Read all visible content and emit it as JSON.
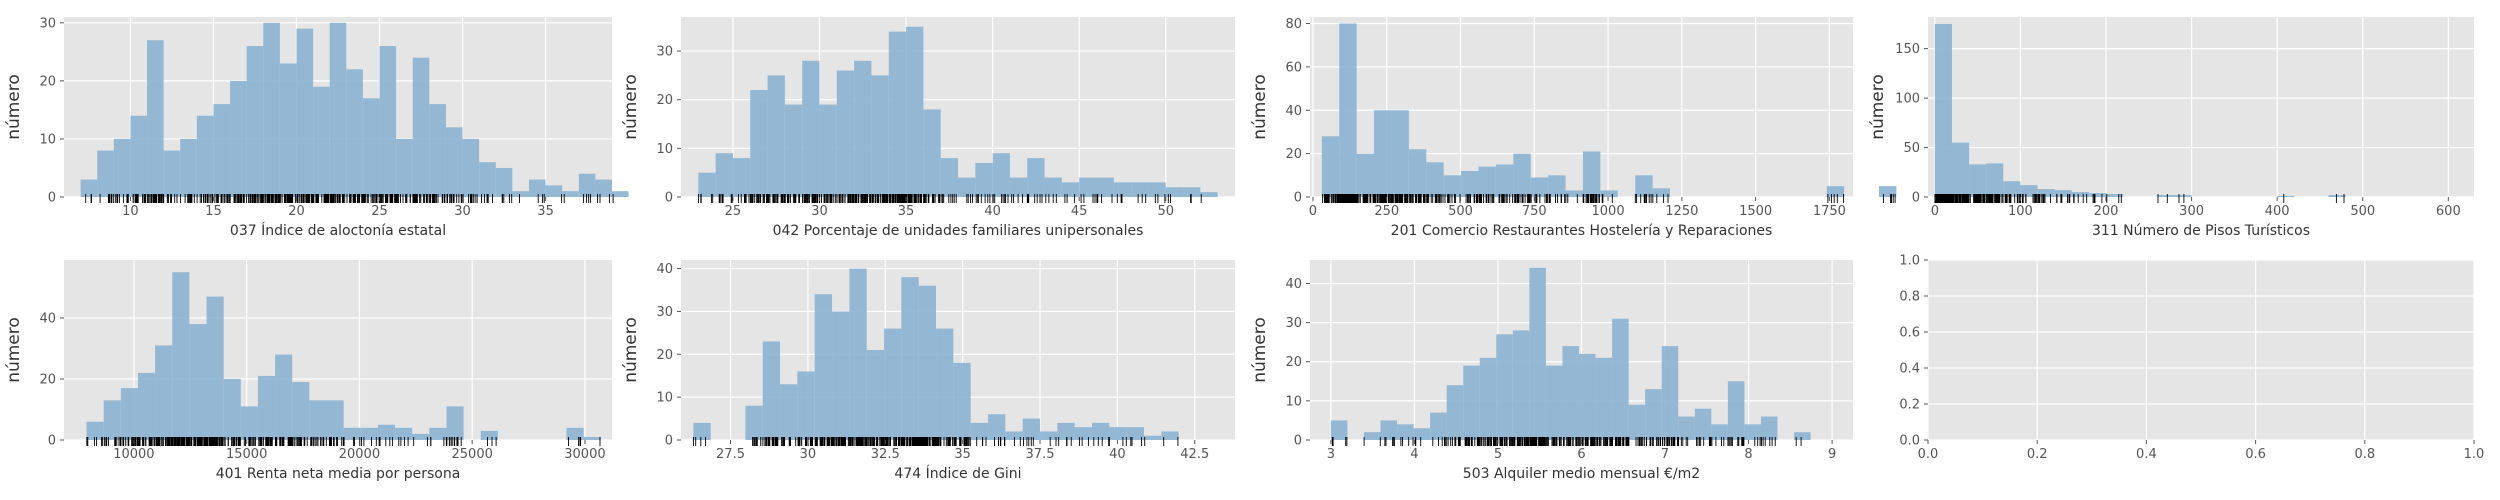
{
  "chart_data": [
    {
      "type": "bar",
      "subtype": "histogram-with-rug",
      "xlabel": "037 Índice de aloctonía estatal",
      "ylabel": "número",
      "xlim": [
        6,
        39
      ],
      "ylim": [
        0,
        31
      ],
      "xticks": [
        10,
        15,
        20,
        25,
        30,
        35
      ],
      "yticks": [
        0,
        10,
        20,
        30
      ],
      "bin_start": 7.0,
      "bin_width": 1.0,
      "counts": [
        3,
        8,
        10,
        14,
        27,
        8,
        10,
        14,
        16,
        20,
        26,
        30,
        23,
        29,
        19,
        30,
        22,
        17,
        26,
        10,
        24,
        16,
        12,
        10,
        6,
        5,
        1,
        3,
        2,
        1,
        4,
        3,
        1
      ],
      "grid": true
    },
    {
      "type": "bar",
      "subtype": "histogram-with-rug",
      "xlabel": "042 Porcentaje de unidades familiares unipersonales",
      "ylabel": "número",
      "xlim": [
        22,
        54
      ],
      "ylim": [
        0,
        37
      ],
      "xticks": [
        25,
        30,
        35,
        40,
        45,
        50
      ],
      "yticks": [
        0,
        10,
        20,
        30
      ],
      "bin_start": 23.0,
      "bin_width": 1.0,
      "counts": [
        5,
        9,
        8,
        22,
        25,
        19,
        28,
        19,
        26,
        28,
        25,
        34,
        35,
        18,
        8,
        4,
        7,
        9,
        4,
        8,
        4,
        3,
        4,
        4,
        3,
        3,
        3,
        2,
        2,
        1
      ],
      "grid": true
    },
    {
      "type": "bar",
      "subtype": "histogram-with-rug",
      "xlabel": "201 Comercio Restaurantes Hostelería y Reparaciones",
      "ylabel": "número",
      "xlim": [
        -10,
        1830
      ],
      "ylim": [
        0,
        83
      ],
      "xticks": [
        0,
        250,
        500,
        750,
        1000,
        1250,
        1500,
        1750
      ],
      "yticks": [
        0,
        20,
        40,
        60,
        80
      ],
      "bin_start": 30,
      "bin_width": 59,
      "counts": [
        28,
        80,
        20,
        40,
        40,
        22,
        16,
        10,
        12,
        14,
        15,
        20,
        9,
        10,
        3,
        21,
        3,
        0,
        10,
        4,
        0,
        0,
        0,
        0,
        0,
        0,
        0,
        0,
        0,
        5,
        0,
        0,
        5
      ],
      "grid": true
    },
    {
      "type": "bar",
      "subtype": "histogram-with-rug",
      "xlabel": "311 Número de Pisos Turísticos",
      "ylabel": "número",
      "xlim": [
        -8,
        630
      ],
      "ylim": [
        0,
        182
      ],
      "xticks": [
        0,
        100,
        200,
        300,
        400,
        500,
        600
      ],
      "yticks": [
        0,
        50,
        100,
        150
      ],
      "bin_start": 0,
      "bin_width": 20,
      "counts": [
        175,
        55,
        33,
        34,
        16,
        12,
        8,
        7,
        5,
        4,
        3,
        0,
        0,
        2,
        2,
        0,
        0,
        0,
        0,
        0,
        1,
        0,
        0,
        2,
        0,
        0,
        0,
        0,
        0,
        0
      ],
      "grid": true
    },
    {
      "type": "bar",
      "subtype": "histogram-with-rug",
      "xlabel": "401 Renta neta media por persona",
      "ylabel": "número",
      "xlim": [
        6900,
        31200
      ],
      "ylim": [
        0,
        59
      ],
      "xticks": [
        10000,
        15000,
        20000,
        25000,
        30000
      ],
      "yticks": [
        0,
        20,
        40
      ],
      "bin_start": 7900,
      "bin_width": 760,
      "counts": [
        6,
        13,
        17,
        22,
        31,
        55,
        38,
        47,
        20,
        11,
        21,
        28,
        19,
        13,
        13,
        4,
        4,
        5,
        4,
        2,
        4,
        11,
        0,
        3,
        0,
        0,
        0,
        0,
        4,
        1
      ],
      "grid": true
    },
    {
      "type": "bar",
      "subtype": "histogram-with-rug",
      "xlabel": "474 Índice de Gini",
      "ylabel": "número",
      "xlim": [
        25.9,
        43.8
      ],
      "ylim": [
        0,
        42
      ],
      "xticks": [
        27.5,
        30.0,
        32.5,
        35.0,
        37.5,
        40.0,
        42.5
      ],
      "yticks": [
        0,
        10,
        20,
        30,
        40
      ],
      "bin_start": 26.3,
      "bin_width": 0.56,
      "counts": [
        4,
        0,
        0,
        8,
        23,
        13,
        16,
        34,
        30,
        40,
        21,
        26,
        38,
        36,
        26,
        18,
        4,
        6,
        2,
        5,
        2,
        4,
        3,
        4,
        3,
        3,
        1,
        2,
        0
      ],
      "grid": true
    },
    {
      "type": "bar",
      "subtype": "histogram-with-rug",
      "xlabel": "503 Alquiler medio mensual €/m2",
      "ylabel": "número",
      "xlim": [
        2.75,
        9.25
      ],
      "ylim": [
        0,
        46
      ],
      "xticks": [
        3,
        4,
        5,
        6,
        7,
        8,
        9
      ],
      "yticks": [
        0,
        10,
        20,
        30,
        40
      ],
      "bin_start": 3.0,
      "bin_width": 0.198,
      "counts": [
        5,
        0,
        2,
        5,
        4,
        3,
        7,
        14,
        19,
        21,
        27,
        28,
        44,
        19,
        24,
        22,
        21,
        31,
        9,
        13,
        24,
        6,
        8,
        4,
        15,
        4,
        6,
        0,
        2,
        0
      ],
      "grid": true
    },
    {
      "type": "empty",
      "xlim": [
        0,
        1
      ],
      "ylim": [
        0,
        1
      ],
      "xticks": [
        0.0,
        0.2,
        0.4,
        0.6,
        0.8,
        1.0
      ],
      "yticks": [
        0.0,
        0.2,
        0.4,
        0.6,
        0.8,
        1.0
      ],
      "grid": true
    }
  ],
  "style": {
    "axes_bg": "#e5e5e5",
    "grid_color": "#ffffff",
    "bar_color": "#8db4d2",
    "rug_color": "#000000",
    "tick_color": "#555555",
    "label_color": "#333333"
  }
}
